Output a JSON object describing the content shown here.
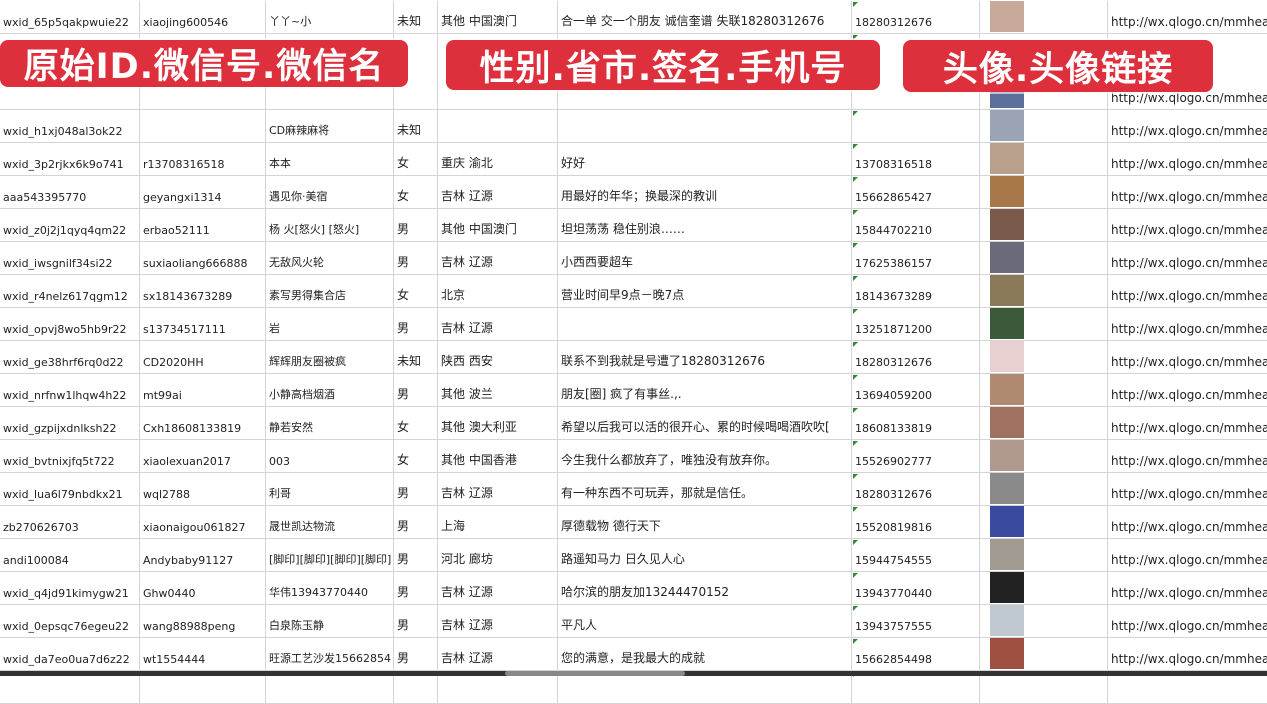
{
  "banners": [
    "原始ID.微信号.微信名",
    "性别.省市.签名.手机号",
    "头像.头像链接"
  ],
  "rows": [
    [
      "wxid_65p5qakpwuie22",
      "xiaojing600546",
      "丫丫~小",
      "未知",
      "其他 中国澳门",
      "合一单 交一个朋友 诚信奎谱 失联18280312676",
      "18280312676",
      "http://wx.qlogo.cn/mmhead"
    ],
    [
      "",
      "",
      "",
      "",
      "",
      "",
      "",
      "http://wx.qlogo.cn/mmhead"
    ],
    [
      "wxid_h1xj048al3ok22",
      "",
      "CD麻辣麻将",
      "未知",
      "",
      "",
      "",
      "http://wx.qlogo.cn/mmhead"
    ],
    [
      "wxid_3p2rjkx6k9o741",
      "r13708316518",
      "本本",
      "女",
      "重庆 渝北",
      "好好",
      "13708316518",
      "http://wx.qlogo.cn/mmhead"
    ],
    [
      "aaa543395770",
      "geyangxi1314",
      "遇见你·美宿",
      "女",
      "吉林 辽源",
      "用最好的年华；换最深的教训",
      "15662865427",
      "http://wx.qlogo.cn/mmhead"
    ],
    [
      "wxid_z0j2j1qyq4qm22",
      "erbao52111",
      "杨 火[怒火] [怒火]",
      "男",
      "其他 中国澳门",
      "坦坦荡荡 稳住别浪……",
      "15844702210",
      "http://wx.qlogo.cn/mmhead"
    ],
    [
      "wxid_iwsgnilf34si22",
      "suxiaoliang666888",
      "无敌风火轮",
      "男",
      "吉林 辽源",
      "小西西要超车",
      "17625386157",
      "http://wx.qlogo.cn/mmhead"
    ],
    [
      "wxid_r4nelz617qgm12",
      "sx18143673289",
      "素写男得集合店",
      "女",
      "北京",
      "营业时间早9点－晚7点",
      "18143673289",
      "http://wx.qlogo.cn/mmhead"
    ],
    [
      "wxid_opvj8wo5hb9r22",
      "s13734517111",
      "岩",
      "男",
      "吉林 辽源",
      "",
      "13251871200",
      "http://wx.qlogo.cn/mmhead"
    ],
    [
      "wxid_ge38hrf6rq0d22",
      "CD2020HH",
      "辉辉朋友圈被疯",
      "未知",
      "陕西 西安",
      "联系不到我就是号遭了18280312676",
      "18280312676",
      "http://wx.qlogo.cn/mmhead"
    ],
    [
      "wxid_nrfnw1lhqw4h22",
      "mt99ai",
      "小静高档烟酒",
      "男",
      "其他 波兰",
      "朋友[圈] 疯了有事丝.,.",
      "13694059200",
      "http://wx.qlogo.cn/mmhead"
    ],
    [
      "wxid_gzpijxdnlksh22",
      "Cxh18608133819",
      "静若安然",
      "女",
      "其他 澳大利亚",
      "希望以后我可以活的很开心、累的时候喝喝酒吹吹[",
      "18608133819",
      "http://wx.qlogo.cn/mmhead"
    ],
    [
      "wxid_bvtnixjfq5t722",
      "xiaolexuan2017",
      "003",
      "女",
      "其他 中国香港",
      "今生我什么都放弃了，唯独没有放弃你。",
      "15526902777",
      "http://wx.qlogo.cn/mmhead"
    ],
    [
      "wxid_lua6l79nbdkx21",
      "wql2788",
      "利哥",
      "男",
      "吉林 辽源",
      "有一种东西不可玩弄，那就是信任。",
      "18280312676",
      "http://wx.qlogo.cn/mmhead"
    ],
    [
      "zb270626703",
      "xiaonaigou061827",
      "晟世凯达物流",
      "男",
      "上海",
      "厚德载物 德行天下",
      "15520819816",
      "http://wx.qlogo.cn/mmhead"
    ],
    [
      "andi100084",
      "Andybaby91127",
      "[脚印][脚印][脚印][脚印]",
      "男",
      "河北 廊坊",
      "路遥知马力 日久见人心",
      "15944754555",
      "http://wx.qlogo.cn/mmhead"
    ],
    [
      "wxid_q4jd91kimygw21",
      "Ghw0440",
      "华伟13943770440",
      "男",
      "吉林 辽源",
      "哈尔滨的朋友加13244470152",
      "13943770440",
      "http://wx.qlogo.cn/mmhead"
    ],
    [
      "wxid_0epsqc76egeu22",
      "wang88988peng",
      "白泉陈玉静",
      "男",
      "吉林 辽源",
      "平凡人",
      "13943757555",
      "http://wx.qlogo.cn/mmhead"
    ],
    [
      "wxid_da7eo0ua7d6z22",
      "wt1554444",
      "旺源工艺沙发15662854",
      "男",
      "吉林 辽源",
      "您的满意，是我最大的成就",
      "15662854498",
      "http://wx.qlogo.cn/mmhead"
    ],
    [
      "",
      "",
      "",
      "",
      "",
      "",
      "",
      ""
    ]
  ],
  "avatar_colors": [
    "#c9a99a",
    "#5a6f9a",
    "#9aa4b4",
    "#b8a08c",
    "#a8784a",
    "#7a5a4a",
    "#6a6a7a",
    "#8a7a5a",
    "#3a5a3a",
    "#e8d0d0",
    "#b08a70",
    "#a07060",
    "#b09a90",
    "#8a8a8a",
    "#3a4aa0",
    "#a09a90",
    "#222222",
    "#c0c8d0",
    "#a05040",
    "#8090b0"
  ],
  "brand_colors": {
    "banner": "#de2f3c"
  }
}
